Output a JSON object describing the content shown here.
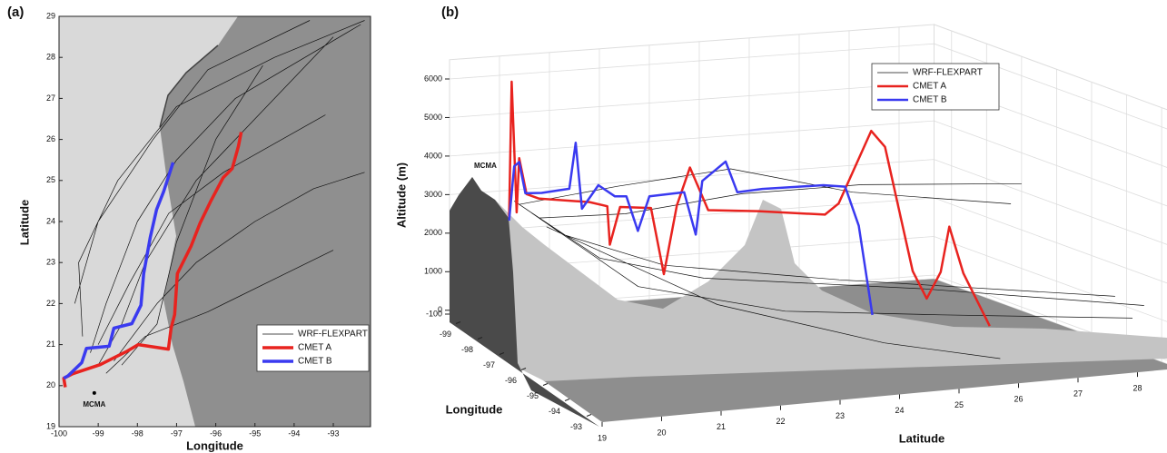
{
  "chart_data": [
    {
      "type": "line",
      "panel_label": "(a)",
      "xlabel": "Longitude",
      "ylabel": "Latitude",
      "xlim": [
        -100,
        -92.05
      ],
      "ylim": [
        19,
        29
      ],
      "xticks": [
        -100,
        -99,
        -98,
        -97,
        -96,
        -95,
        -94,
        -93
      ],
      "yticks": [
        19,
        20,
        21,
        22,
        23,
        24,
        25,
        26,
        27,
        28,
        29
      ],
      "legend": "lower right",
      "grid": false,
      "annotation": {
        "text": "MCMA",
        "x": -99.1,
        "y": 19.6
      },
      "series": [
        {
          "name": "WRF-FLEXPART",
          "color": "#111111",
          "width": 0.7,
          "x": [
            -99.0,
            -98.4,
            -97.8,
            -96.5,
            -95.0,
            -93.0,
            null,
            -99.2,
            -98.8,
            -98.0,
            -97.0,
            -95.5,
            -92.3,
            null,
            -98.6,
            -97.5,
            -96.5,
            -95.0,
            -93.5,
            -92.2,
            null,
            -98.8,
            -97.8,
            -96.2,
            -94.5,
            -93.0,
            null,
            -99.4,
            -99.5,
            -98.5,
            -97.0,
            -94.5,
            -92.2,
            null,
            -98.4,
            -97.5,
            -97.0,
            -96.0,
            -94.8,
            null,
            -99.0,
            -98.2,
            -97.2,
            -95.8,
            -93.2,
            null,
            -99.6,
            -99.0,
            -97.6,
            -96.2,
            -93.6
          ],
          "values": [
            20.5,
            21.5,
            23.0,
            25.0,
            26.5,
            28.5,
            null,
            20.8,
            22.0,
            24.0,
            25.5,
            27.0,
            28.8,
            null,
            20.6,
            22.0,
            23.0,
            24.0,
            24.8,
            25.2,
            null,
            20.3,
            21.2,
            21.8,
            22.6,
            23.3,
            null,
            21.2,
            23.0,
            25.0,
            26.8,
            28.0,
            28.9,
            null,
            20.5,
            21.5,
            23.5,
            26.0,
            27.8,
            null,
            21.0,
            22.5,
            24.2,
            25.2,
            26.6,
            null,
            22.0,
            24.0,
            26.0,
            27.7,
            28.9
          ]
        },
        {
          "name": "CMET A",
          "color": "#e8231f",
          "width": 3.5,
          "x": [
            -99.84,
            -99.88,
            -99.65,
            -98.95,
            -98.26,
            -97.98,
            -97.21,
            -97.14,
            -97.05,
            -96.98,
            -96.63,
            -96.4,
            -96.12,
            -95.81,
            -95.58,
            -95.42,
            -95.35
          ],
          "values": [
            19.96,
            20.18,
            20.29,
            20.51,
            20.84,
            21.0,
            20.89,
            21.4,
            21.73,
            22.73,
            23.4,
            23.96,
            24.51,
            25.07,
            25.29,
            25.84,
            26.18
          ]
        },
        {
          "name": "CMET B",
          "color": "#3a3af0",
          "width": 3.5,
          "x": [
            -99.88,
            -99.77,
            -99.42,
            -99.3,
            -98.72,
            -98.6,
            -98.14,
            -97.91,
            -97.84,
            -97.67,
            -97.51,
            -97.33,
            -97.09
          ],
          "values": [
            20.18,
            20.24,
            20.56,
            20.91,
            20.96,
            21.4,
            21.51,
            21.96,
            22.73,
            23.62,
            24.29,
            24.73,
            25.44
          ]
        }
      ]
    },
    {
      "type": "line3d",
      "panel_label": "(b)",
      "xlabel": "Latitude",
      "lonlabel": "Longitude",
      "ylabel": "Altitude (m)",
      "xlim": [
        19,
        28.7
      ],
      "lonlim": [
        -99.5,
        -92.5
      ],
      "ylim": [
        -100,
        6500
      ],
      "xticks": [
        19,
        20,
        21,
        22,
        23,
        24,
        25,
        26,
        27,
        28
      ],
      "lonticks": [
        -99,
        -98,
        -97,
        -96,
        -95,
        -94,
        -93
      ],
      "yticks": [
        -100,
        0,
        1000,
        2000,
        3000,
        4000,
        5000,
        6000
      ],
      "legend": "upper right",
      "grid": true,
      "annotation": {
        "text": "MCMA"
      },
      "series": [
        {
          "name": "WRF-FLEXPART",
          "color": "#111111",
          "width": 0.7,
          "x": [
            20.2,
            21.0,
            22.5,
            25.0,
            28.5,
            null,
            20.4,
            21.5,
            23.0,
            26.0,
            28.7,
            null,
            20.6,
            22.0,
            24.0,
            26.0,
            28.7,
            null,
            20.5,
            22.0,
            24.0,
            26.0,
            28.5,
            null,
            20.3,
            22.0,
            24.0,
            26.0,
            28.5,
            null,
            20.7,
            23.0,
            25.0,
            26.5
          ],
          "lon": [
            -99.3,
            -98.9,
            -98.0,
            -96.5,
            -94.0,
            null,
            -99.2,
            -98.5,
            -97.5,
            -95.5,
            -93.5,
            null,
            -99.1,
            -98.5,
            -98.0,
            -97.5,
            -97.0,
            null,
            -99.2,
            -98.0,
            -96.5,
            -95.0,
            -93.5,
            null,
            -99.3,
            -98.8,
            -98.4,
            -97.8,
            -97.0,
            null,
            -99.0,
            -97.0,
            -95.0,
            -94.0
          ],
          "values": [
            2800,
            2000,
            1400,
            1300,
            1300,
            null,
            2600,
            1500,
            1200,
            1300,
            1200,
            null,
            2400,
            2600,
            3100,
            3300,
            3200,
            null,
            2500,
            900,
            600,
            800,
            900,
            null,
            2700,
            3200,
            3600,
            3000,
            2700,
            null,
            2200,
            700,
            200,
            -50
          ]
        },
        {
          "name": "CMET A",
          "color": "#e8231f",
          "width": 2.5,
          "x": [
            20.1,
            20.15,
            20.25,
            20.3,
            20.4,
            20.6,
            21.5,
            21.8,
            21.85,
            22.0,
            22.5,
            22.7,
            22.9,
            23.1,
            23.4,
            24.2,
            25.3,
            25.5,
            26.0,
            26.2,
            26.6,
            26.8,
            27.0,
            27.1,
            27.3,
            27.6
          ],
          "lon": [
            -99.3,
            -99.3,
            -99.3,
            -99.3,
            -99.2,
            -99.1,
            -98.9,
            -98.8,
            -98.8,
            -98.7,
            -98.5,
            -98.4,
            -98.3,
            -98.2,
            -98.1,
            -97.8,
            -97.5,
            -97.4,
            -97.2,
            -97.1,
            -96.9,
            -96.8,
            -96.7,
            -96.6,
            -96.5,
            -96.2
          ],
          "values": [
            2400,
            5900,
            2500,
            3900,
            3000,
            2900,
            2800,
            2700,
            1700,
            2700,
            2700,
            1000,
            2800,
            3800,
            2700,
            2700,
            2600,
            2900,
            4800,
            4400,
            1200,
            500,
            1200,
            2400,
            1200,
            -100
          ]
        },
        {
          "name": "CMET B",
          "color": "#3a3af0",
          "width": 2.5,
          "x": [
            20.1,
            20.2,
            20.3,
            20.4,
            20.7,
            21.2,
            21.3,
            21.4,
            21.7,
            22.0,
            22.2,
            22.4,
            22.6,
            23.2,
            23.4,
            23.5,
            23.9,
            24.1,
            24.5,
            25.5,
            25.8,
            26.0,
            26.2
          ],
          "lon": [
            -99.3,
            -99.3,
            -99.3,
            -99.25,
            -99.2,
            -99.1,
            -99.05,
            -99.0,
            -98.95,
            -98.9,
            -98.85,
            -98.8,
            -98.75,
            -98.6,
            -98.55,
            -98.5,
            -98.4,
            -98.35,
            -98.2,
            -97.9,
            -97.7,
            -97.6,
            -97.5
          ],
          "values": [
            2300,
            3700,
            3800,
            3000,
            3000,
            3100,
            4300,
            2600,
            3200,
            2900,
            2900,
            2000,
            2900,
            3000,
            1900,
            3300,
            3800,
            3000,
            3100,
            3200,
            3200,
            2200,
            -100
          ]
        }
      ]
    }
  ]
}
